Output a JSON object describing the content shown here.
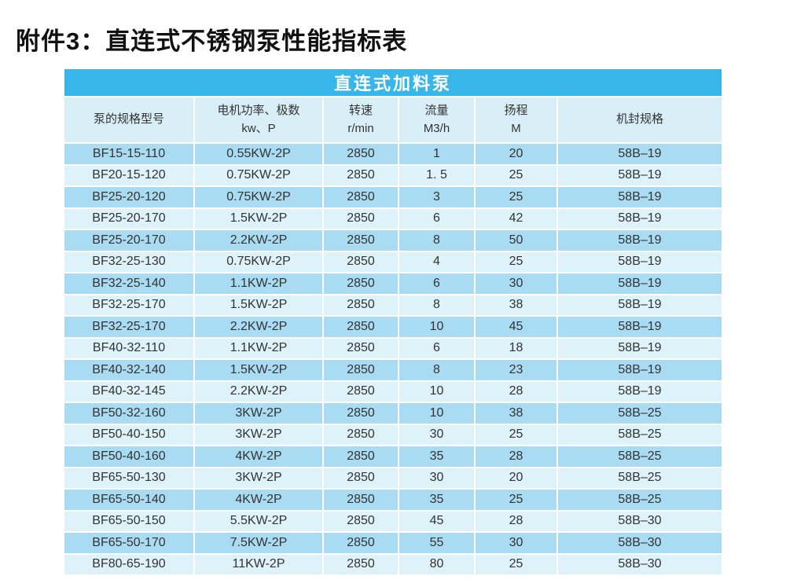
{
  "page": {
    "title": "附件3：直连式不锈钢泵性能指标表"
  },
  "table": {
    "title": "直连式加料泵",
    "columns": [
      {
        "key": "model",
        "line1": "泵的规格型号",
        "line2": ""
      },
      {
        "key": "power",
        "line1": "电机功率、极数",
        "line2": "kw、P"
      },
      {
        "key": "speed",
        "line1": "转速",
        "line2": "r/min"
      },
      {
        "key": "flow",
        "line1": "流量",
        "line2": "M3/h"
      },
      {
        "key": "head",
        "line1": "扬程",
        "line2": "M"
      },
      {
        "key": "seal",
        "line1": "机封规格",
        "line2": ""
      }
    ],
    "rows": [
      [
        "BF15-15-110",
        "0.55KW-2P",
        "2850",
        "1",
        "20",
        "58B–19"
      ],
      [
        "BF20-15-120",
        "0.75KW-2P",
        "2850",
        "1. 5",
        "25",
        "58B–19"
      ],
      [
        "BF25-20-120",
        "0.75KW-2P",
        "2850",
        "3",
        "25",
        "58B–19"
      ],
      [
        "BF25-20-170",
        "1.5KW-2P",
        "2850",
        "6",
        "42",
        "58B–19"
      ],
      [
        "BF25-20-170",
        "2.2KW-2P",
        "2850",
        "8",
        "50",
        "58B–19"
      ],
      [
        "BF32-25-130",
        "0.75KW-2P",
        "2850",
        "4",
        "25",
        "58B–19"
      ],
      [
        "BF32-25-140",
        "1.1KW-2P",
        "2850",
        "6",
        "30",
        "58B–19"
      ],
      [
        "BF32-25-170",
        "1.5KW-2P",
        "2850",
        "8",
        "38",
        "58B–19"
      ],
      [
        "BF32-25-170",
        "2.2KW-2P",
        "2850",
        "10",
        "45",
        "58B–19"
      ],
      [
        "BF40-32-110",
        "1.1KW-2P",
        "2850",
        "6",
        "18",
        "58B–19"
      ],
      [
        "BF40-32-140",
        "1.5KW-2P",
        "2850",
        "8",
        "23",
        "58B–19"
      ],
      [
        "BF40-32-145",
        "2.2KW-2P",
        "2850",
        "10",
        "28",
        "58B–19"
      ],
      [
        "BF50-32-160",
        "3KW-2P",
        "2850",
        "10",
        "38",
        "58B–25"
      ],
      [
        "BF50-40-150",
        "3KW-2P",
        "2850",
        "30",
        "25",
        "58B–25"
      ],
      [
        "BF50-40-160",
        "4KW-2P",
        "2850",
        "35",
        "28",
        "58B–25"
      ],
      [
        "BF65-50-130",
        "3KW-2P",
        "2850",
        "30",
        "20",
        "58B–25"
      ],
      [
        "BF65-50-140",
        "4KW-2P",
        "2850",
        "35",
        "25",
        "58B–25"
      ],
      [
        "BF65-50-150",
        "5.5KW-2P",
        "2850",
        "45",
        "28",
        "58B–30"
      ],
      [
        "BF65-50-170",
        "7.5KW-2P",
        "2850",
        "55",
        "30",
        "58B–30"
      ],
      [
        "BF80-65-190",
        "11KW-2P",
        "2850",
        "80",
        "25",
        "58B–30"
      ]
    ]
  },
  "colors": {
    "band": "#38b6e9",
    "header_bg": "#d9eff8",
    "row_dark": "#a9dcf2",
    "row_light": "#def2fa",
    "cell_text": "#333333"
  }
}
